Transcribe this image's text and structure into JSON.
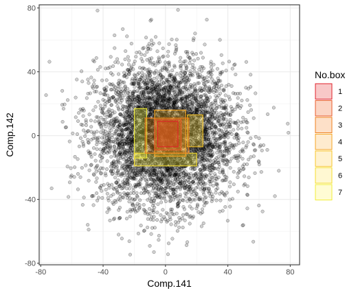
{
  "chart_data": {
    "type": "scatter",
    "xlabel": "Comp.141",
    "ylabel": "Comp.142",
    "xlim": [
      -81,
      86
    ],
    "ylim": [
      -81,
      82
    ],
    "x_ticks": [
      -80,
      -40,
      0,
      40,
      80
    ],
    "y_ticks": [
      -80,
      -40,
      0,
      40,
      80
    ],
    "x_tick_labels": [
      "-80",
      "-40",
      "0",
      "40",
      "80"
    ],
    "y_tick_labels": [
      "-80",
      "-40",
      "0",
      "40",
      "80"
    ],
    "grid": true,
    "points": {
      "description": "~5000 points roughly bivariate normal, centered near (0,0), sd ≈ 22",
      "color": "#000000",
      "alpha": 0.25,
      "count": 5000,
      "center": [
        0,
        0
      ],
      "sd": [
        22,
        22
      ]
    },
    "legend": {
      "title": "No.box",
      "position": "right",
      "entries": [
        {
          "label": "1",
          "fill": "#f8c8c8",
          "stroke": "#e0202a"
        },
        {
          "label": "2",
          "fill": "#fbd5c4",
          "stroke": "#e85a2a"
        },
        {
          "label": "3",
          "fill": "#fde0c8",
          "stroke": "#ef7f1c"
        },
        {
          "label": "4",
          "fill": "#feebcf",
          "stroke": "#f5a623"
        },
        {
          "label": "5",
          "fill": "#fff2d0",
          "stroke": "#f7c52a"
        },
        {
          "label": "6",
          "fill": "#fff8d2",
          "stroke": "#f5dc2c"
        },
        {
          "label": "7",
          "fill": "#fffcd4",
          "stroke": "#f2ee3a"
        }
      ]
    },
    "boxes": [
      {
        "no": 7,
        "x": [
          -20,
          -12
        ],
        "y": [
          -14,
          17
        ]
      },
      {
        "no": 6,
        "x": [
          -20,
          20
        ],
        "y": [
          -19,
          -11
        ]
      },
      {
        "no": 5,
        "x": [
          14,
          24
        ],
        "y": [
          -7,
          13
        ]
      },
      {
        "no": 4,
        "x": [
          -7,
          13
        ],
        "y": [
          -13,
          16
        ]
      },
      {
        "no": 3,
        "x": [
          -13,
          15
        ],
        "y": [
          -11,
          11
        ]
      },
      {
        "no": 2,
        "x": [
          -7,
          10
        ],
        "y": [
          -9,
          10
        ]
      },
      {
        "no": 1,
        "x": [
          -5,
          8
        ],
        "y": [
          -7,
          9
        ]
      }
    ]
  }
}
